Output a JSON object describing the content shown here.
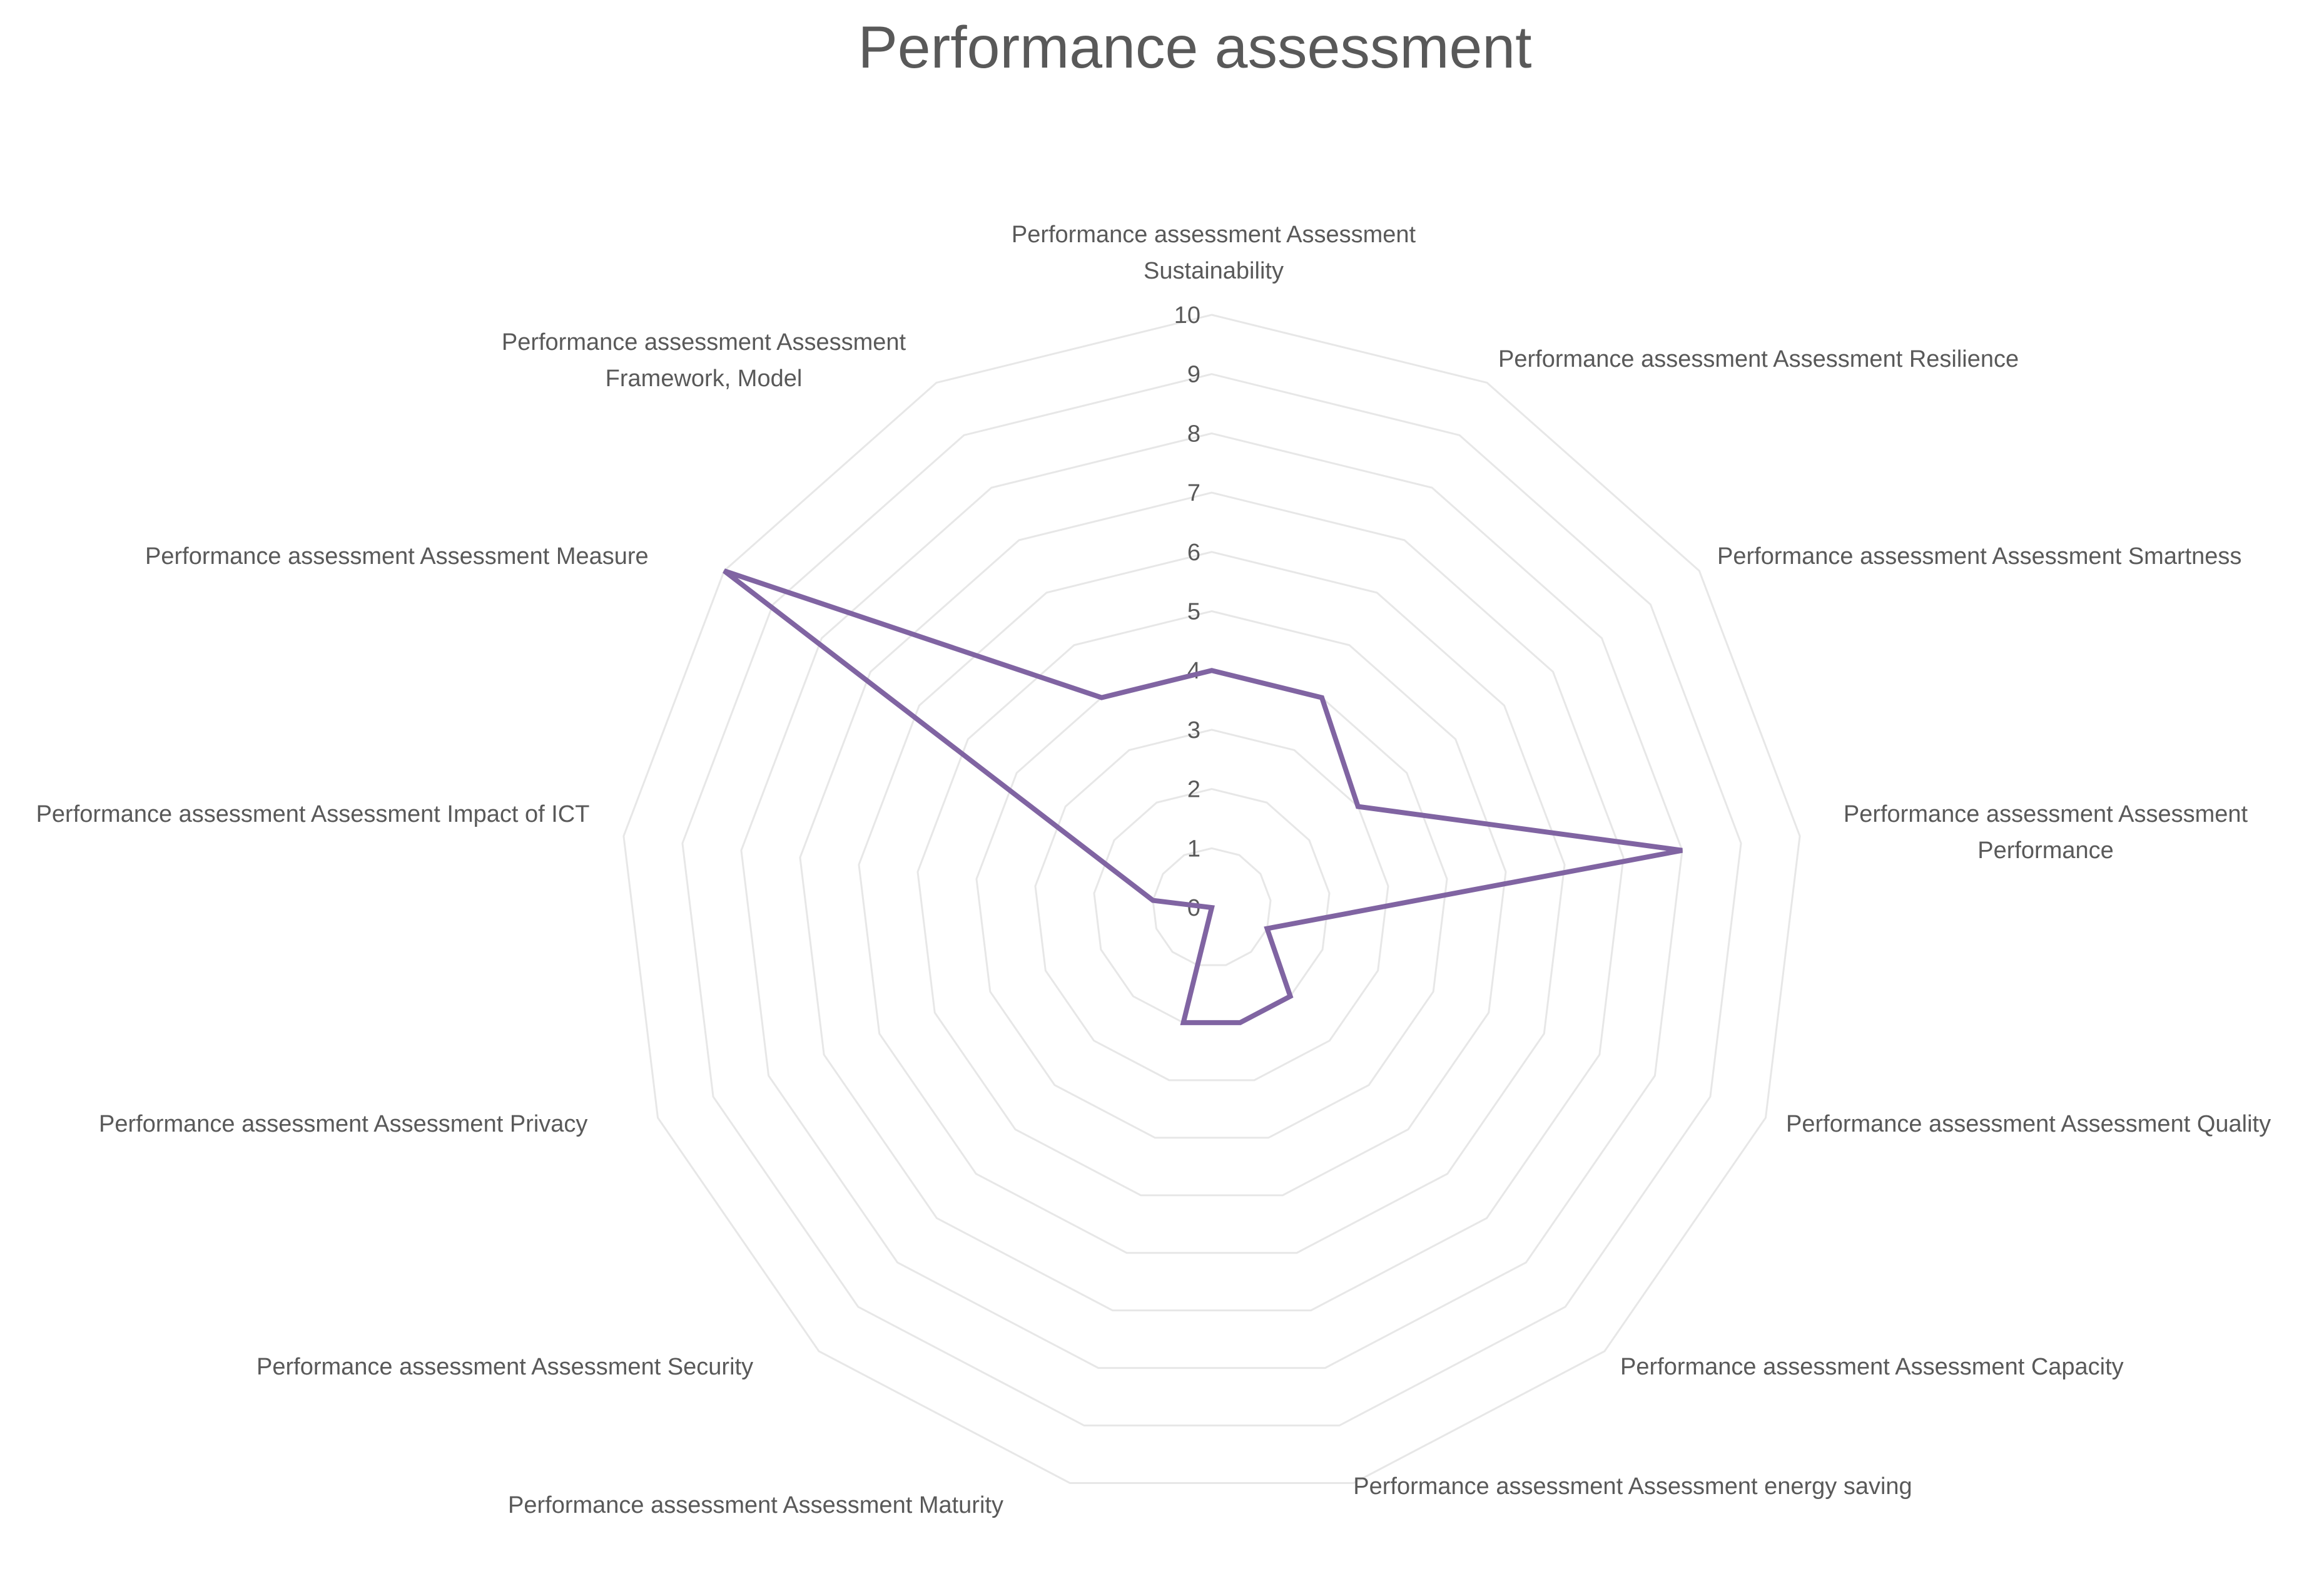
{
  "chart_data": {
    "type": "radar",
    "title": "Performance assessment",
    "categories": [
      "Performance assessment Assessment Sustainability",
      "Performance assessment Assessment Resilience",
      "Performance assessment Assessment Smartness",
      "Performance assessment Assessment Performance",
      "Performance assessment Assessment Quality",
      "Performance assessment Assessment Capacity",
      "Performance assessment Assessment energy saving",
      "Performance assessment Assessment Maturity",
      "Performance assessment Assessment Security",
      "Performance assessment Assessment Privacy",
      "Performance assessment Assessment Impact of ICT",
      "Performance assessment Assessment Measure",
      "Performance assessment Assessment Framework, Model"
    ],
    "series": [
      {
        "values": [
          4,
          4,
          3,
          8,
          1,
          2,
          2,
          2,
          0,
          0,
          1,
          10,
          4
        ]
      }
    ],
    "rlim": [
      0,
      10
    ],
    "ticks": [
      "0",
      "1",
      "2",
      "3",
      "4",
      "5",
      "6",
      "7",
      "8",
      "9",
      "10"
    ],
    "grid": true,
    "legend": "none",
    "colors": {
      "series": "#8064A2",
      "grid": "#E7E7E7",
      "text": "#595959"
    }
  }
}
